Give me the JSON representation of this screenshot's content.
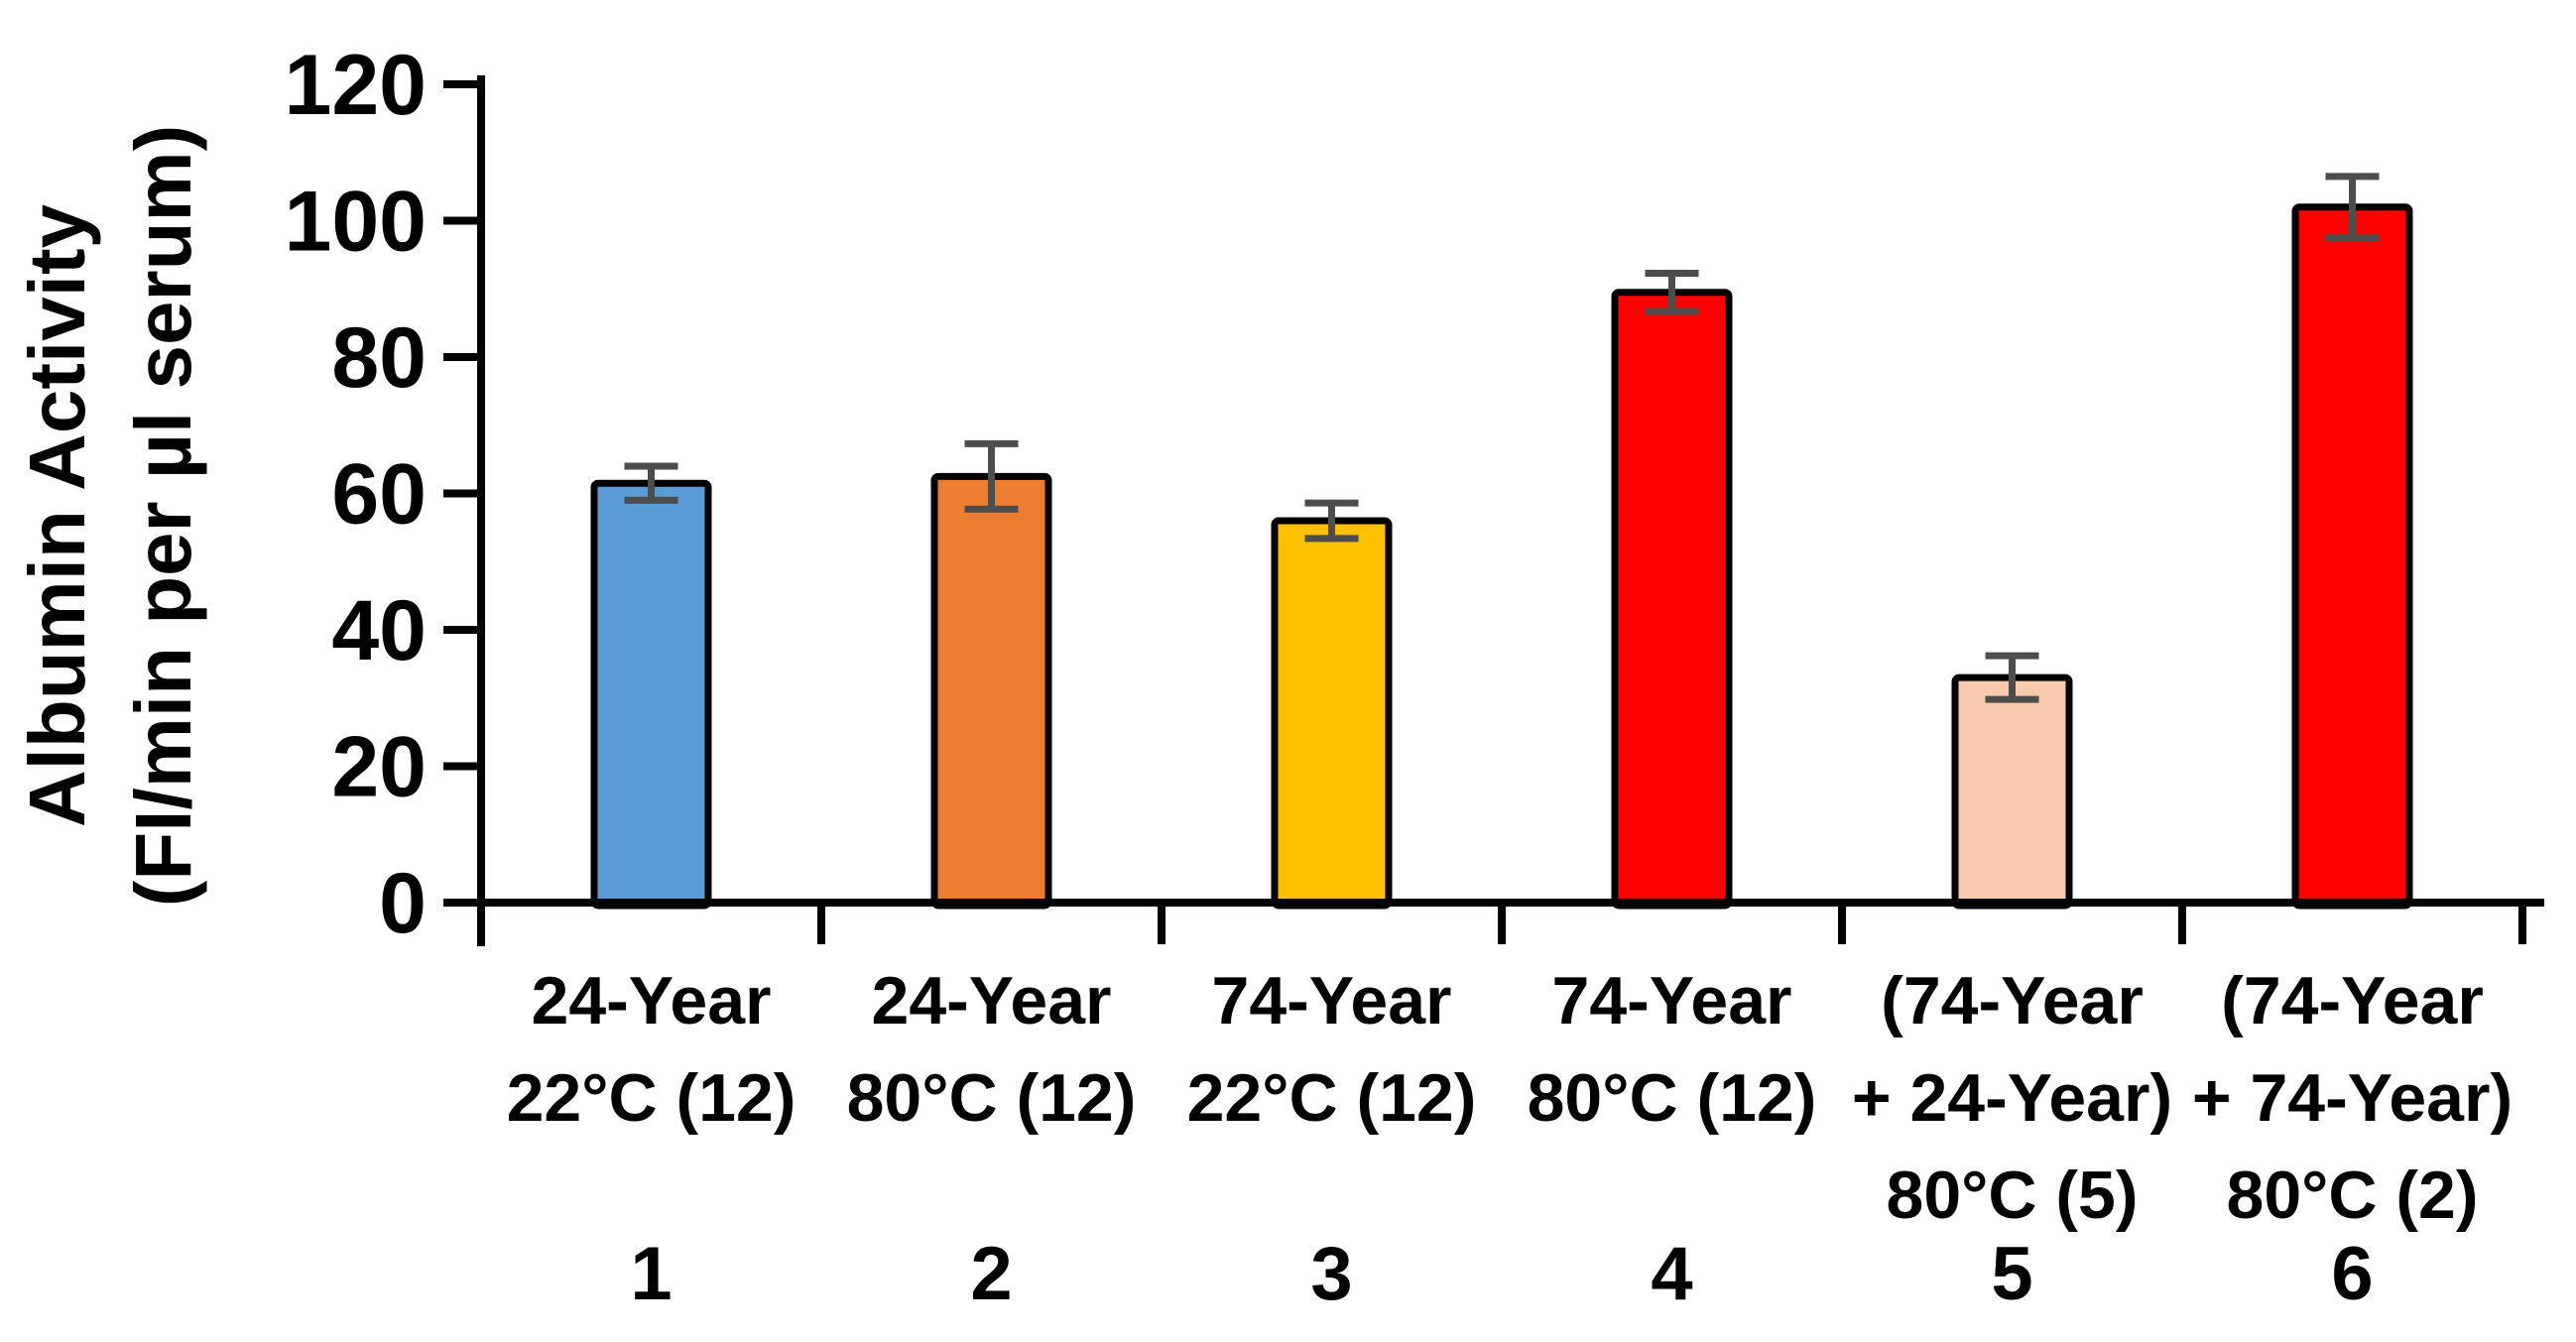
{
  "figure": {
    "description": "Bar chart of albumin activity for serum samples"
  },
  "chart_data": {
    "type": "bar",
    "title": "",
    "ylabel_lines": [
      "Albumin Activity",
      "(FI/min per µl serum)"
    ],
    "ylim": [
      0,
      120
    ],
    "yticks": [
      0,
      20,
      40,
      60,
      80,
      100,
      120
    ],
    "grid": false,
    "legend": false,
    "categories": [
      "24-Year 22°C (12)",
      "24-Year 80°C (12)",
      "74-Year 22°C (12)",
      "74-Year 80°C (12)",
      "(74-Year + 24-Year) 80°C (5)",
      "(74-Year + 74-Year) 80°C (2)"
    ],
    "category_label_lines": [
      [
        "24-Year",
        "22°C (12)"
      ],
      [
        "24-Year",
        "80°C (12)"
      ],
      [
        "74-Year",
        "22°C (12)"
      ],
      [
        "74-Year",
        "80°C (12)"
      ],
      [
        "(74-Year",
        "+ 24-Year)",
        "80°C (5)"
      ],
      [
        "(74-Year",
        "+ 74-Year)",
        "80°C (2)"
      ]
    ],
    "group_numbers": [
      "1",
      "2",
      "3",
      "4",
      "5",
      "6"
    ],
    "values": [
      61.5,
      62.5,
      56,
      89.5,
      33,
      102
    ],
    "errors": [
      2.5,
      4.8,
      2.6,
      2.8,
      3.2,
      4.5
    ],
    "bar_colors": [
      "#5B9BD5",
      "#ED7D31",
      "#FFC000",
      "#FF0000",
      "#F8CBAD",
      "#FF0000"
    ],
    "bar_border_color": "#000000",
    "error_bar_color": "#4D4D4D",
    "axis_color": "#000000",
    "label_color": "#000000"
  }
}
